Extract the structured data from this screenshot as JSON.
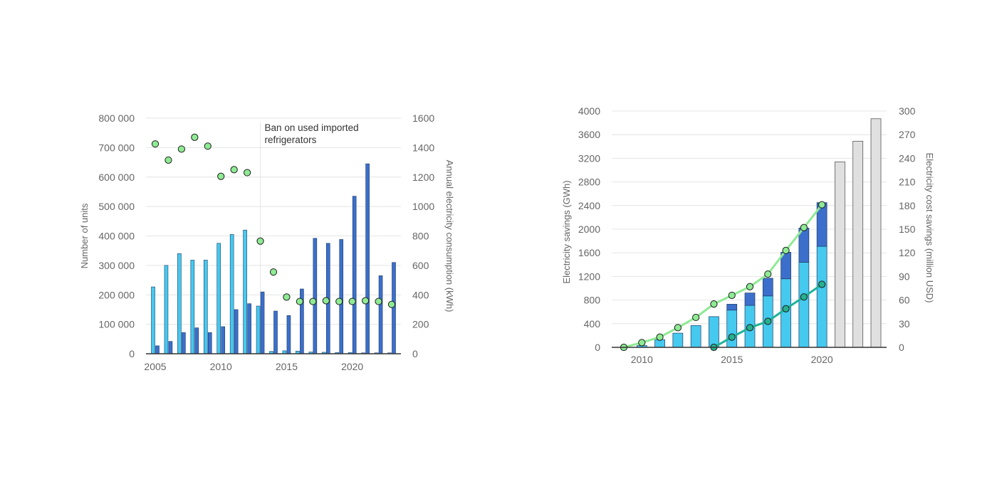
{
  "colors": {
    "light_blue": "#45C9EF",
    "dark_blue": "#3B6FCB",
    "green_marker": "#8EEA93",
    "teal": "#1FB39A",
    "light_green_line": "#8EEA93",
    "grey_bar": "#E0E0E0",
    "grid": "#E4E4E4",
    "axis": "#333333"
  },
  "chart_data": [
    {
      "type": "bar",
      "subtype": "grouped bar with scatter overlay",
      "title": "",
      "y_axis_label": "Number of units",
      "y2_axis_label": "Annual electricity consumption (kWh)",
      "ylim": [
        0,
        800000
      ],
      "y_ticks": [
        "0",
        "100 000",
        "200 000",
        "300 000",
        "400 000",
        "500 000",
        "600 000",
        "700 000",
        "800 000"
      ],
      "y2lim": [
        0,
        1600
      ],
      "y2_ticks": [
        "0",
        "200",
        "400",
        "600",
        "800",
        "1000",
        "1200",
        "1400",
        "1600"
      ],
      "x_ticks": [
        "2005",
        "2010",
        "2015",
        "2020"
      ],
      "x": [
        2005,
        2006,
        2007,
        2008,
        2009,
        2010,
        2011,
        2012,
        2013,
        2014,
        2015,
        2016,
        2017,
        2018,
        2019,
        2020,
        2021,
        2022,
        2023
      ],
      "series": [
        {
          "kind": "bar",
          "color": "light_blue",
          "values": [
            227000,
            300000,
            340000,
            318000,
            318000,
            375000,
            405000,
            420000,
            162000,
            8000,
            10000,
            9000,
            6000,
            5000,
            4000,
            4000,
            3000,
            3000,
            3000
          ]
        },
        {
          "kind": "bar",
          "color": "dark_blue",
          "values": [
            27000,
            42000,
            72000,
            88000,
            72000,
            92000,
            150000,
            170000,
            210000,
            145000,
            130000,
            220000,
            392000,
            375000,
            388000,
            535000,
            645000,
            265000,
            310000
          ]
        },
        {
          "kind": "scatter",
          "axis": "y2",
          "color": "green_marker",
          "values": [
            1425,
            1315,
            1390,
            1470,
            1410,
            1205,
            1250,
            1230,
            765,
            555,
            385,
            355,
            355,
            360,
            355,
            355,
            360,
            355,
            335
          ]
        }
      ],
      "grid": true,
      "annotation": {
        "line1": "Ban on used imported",
        "line2": "refrigerators",
        "x": 2013
      }
    },
    {
      "type": "bar",
      "subtype": "stacked bar with line overlay",
      "title": "",
      "y_axis_label": "Electricity savings (GWh)",
      "y2_axis_label": "Electricity cost savings (million USD)",
      "ylim": [
        0,
        4000
      ],
      "y_ticks": [
        "0",
        "400",
        "800",
        "1200",
        "1600",
        "2000",
        "2400",
        "2800",
        "3200",
        "3600",
        "4000"
      ],
      "y2lim": [
        0,
        300
      ],
      "y2_ticks": [
        "0",
        "30",
        "60",
        "90",
        "120",
        "150",
        "180",
        "210",
        "240",
        "270",
        "300"
      ],
      "x_ticks": [
        "2010",
        "2015",
        "2020"
      ],
      "x": [
        2009,
        2010,
        2011,
        2012,
        2013,
        2014,
        2015,
        2016,
        2017,
        2018,
        2019,
        2020,
        2021,
        2022,
        2023
      ],
      "series": [
        {
          "kind": "stacked_bar",
          "color": "light_blue",
          "values": [
            0,
            30,
            130,
            240,
            370,
            520,
            630,
            710,
            870,
            1160,
            1440,
            1710,
            0,
            0,
            0
          ]
        },
        {
          "kind": "stacked_bar",
          "color": "dark_blue",
          "values": [
            0,
            0,
            0,
            0,
            0,
            0,
            100,
            210,
            300,
            450,
            580,
            740,
            0,
            0,
            0
          ]
        },
        {
          "kind": "stacked_bar",
          "color": "grey_bar",
          "values": [
            0,
            0,
            0,
            0,
            0,
            0,
            0,
            0,
            0,
            0,
            0,
            0,
            3140,
            3490,
            3870
          ]
        },
        {
          "kind": "line",
          "axis": "y2",
          "color": "light_green_line",
          "values": [
            0,
            6,
            13,
            25,
            38,
            55,
            66,
            77,
            93,
            123,
            152,
            181,
            null,
            null,
            null
          ]
        },
        {
          "kind": "line",
          "axis": "y2",
          "color": "teal",
          "values": [
            null,
            null,
            null,
            null,
            null,
            0,
            13,
            25,
            33,
            49,
            64,
            80,
            null,
            null,
            null
          ]
        }
      ],
      "grid": true
    }
  ]
}
